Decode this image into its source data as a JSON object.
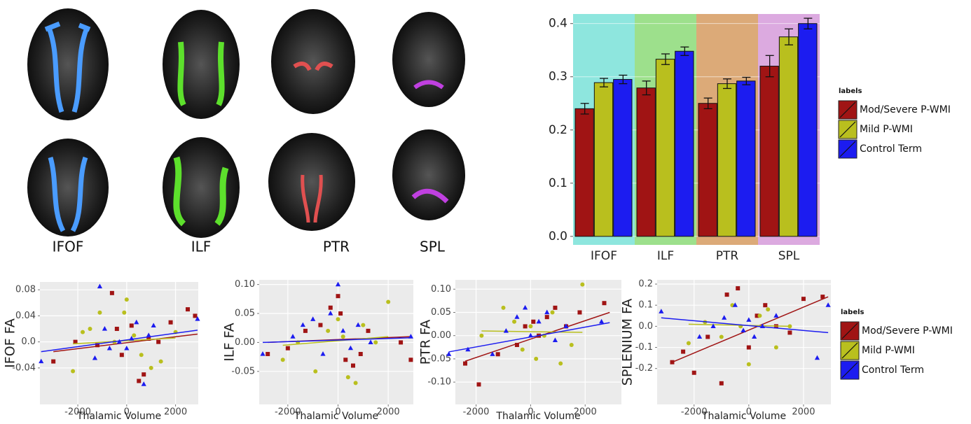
{
  "brain_panel": {
    "labels": [
      "IFOF",
      "ILF",
      "PTR",
      "SPL"
    ]
  },
  "chart_data": [
    {
      "type": "bar",
      "categories": [
        "IFOF",
        "ILF",
        "PTR",
        "SPL"
      ],
      "category_backgrounds": [
        "#8ee6de",
        "#9de08c",
        "#dcaa78",
        "#dcaae0"
      ],
      "ylim": [
        -0.016,
        0.418
      ],
      "yticks": [
        {
          "value": 0,
          "label": "0.0"
        },
        0.1,
        0.2,
        0.3,
        0.4
      ],
      "legend_title": "labels",
      "legend": "right",
      "series": [
        {
          "name": "Mod/Severe P-WMI",
          "color": "#a01414",
          "values": [
            0.24,
            0.279,
            0.25,
            0.32
          ],
          "errors": [
            0.01,
            0.013,
            0.01,
            0.02
          ]
        },
        {
          "name": "Mild P-WMI",
          "color": "#b9bf1e",
          "values": [
            0.289,
            0.333,
            0.287,
            0.375
          ],
          "errors": [
            0.008,
            0.01,
            0.009,
            0.015
          ]
        },
        {
          "name": "Control Term",
          "color": "#1c1cf0",
          "values": [
            0.295,
            0.348,
            0.292,
            0.4
          ],
          "errors": [
            0.008,
            0.008,
            0.007,
            0.01
          ]
        }
      ]
    },
    {
      "type": "scatter",
      "xlabel": "Thalamic Volume",
      "ylabel": "IFOF FA",
      "xlim": [
        -3550,
        2930
      ],
      "ylim": [
        -0.096,
        0.092
      ],
      "xticks": [
        -2000,
        0,
        2000
      ],
      "yticks": [
        {
          "value": -0.04,
          "label": "-0.04"
        },
        {
          "value": 0,
          "label": "0.0"
        },
        {
          "value": 0.04,
          "label": "0.04"
        },
        {
          "value": 0.08,
          "label": "0.08"
        }
      ],
      "grid": true,
      "series": [
        {
          "color": "#a01414",
          "marker": "square",
          "x": [
            -3000,
            -2100,
            -1200,
            -600,
            -400,
            -200,
            200,
            500,
            700,
            900,
            1300,
            1800,
            2500,
            2800
          ],
          "values": [
            -0.03,
            0.0,
            -0.005,
            0.075,
            0.02,
            -0.02,
            0.025,
            -0.06,
            -0.05,
            0.005,
            0.0,
            0.03,
            0.05,
            0.04
          ],
          "fit_x": [
            -3000,
            2900
          ],
          "fit_y": [
            -0.015,
            0.012
          ]
        },
        {
          "color": "#b9bf1e",
          "marker": "circle",
          "x": [
            -2200,
            -1800,
            -1500,
            -1100,
            -500,
            -100,
            0,
            300,
            600,
            1000,
            1400,
            2000
          ],
          "values": [
            -0.045,
            0.015,
            0.02,
            0.045,
            0.0,
            0.045,
            0.065,
            0.01,
            -0.02,
            -0.04,
            -0.03,
            0.015
          ],
          "fit_x": [
            -2200,
            2000
          ],
          "fit_y": [
            -0.003,
            0.006
          ]
        },
        {
          "color": "#1c1cf0",
          "marker": "triangle",
          "x": [
            -3500,
            -1300,
            -1100,
            -900,
            -700,
            -300,
            0,
            200,
            400,
            700,
            900,
            1100,
            2900
          ],
          "values": [
            -0.03,
            -0.025,
            0.085,
            0.02,
            -0.01,
            0.0,
            -0.01,
            0.005,
            0.03,
            -0.065,
            0.01,
            0.025,
            0.035
          ],
          "fit_x": [
            -3500,
            2900
          ],
          "fit_y": [
            -0.015,
            0.018
          ]
        }
      ]
    },
    {
      "type": "scatter",
      "xlabel": "Thalamic Volume",
      "ylabel": "ILF FA",
      "xlim": [
        -3140,
        3000
      ],
      "ylim": [
        -0.107,
        0.108
      ],
      "xticks": [
        -2000,
        0,
        2000
      ],
      "yticks": [
        {
          "value": -0.05,
          "label": "-0.05"
        },
        {
          "value": 0,
          "label": "0.00"
        },
        0.05,
        {
          "value": 0.1,
          "label": "0.10"
        }
      ],
      "grid": true,
      "series": [
        {
          "color": "#a01414",
          "marker": "square",
          "x": [
            -2800,
            -2000,
            -1300,
            -700,
            -300,
            0,
            100,
            300,
            600,
            900,
            1200,
            2500,
            2900
          ],
          "values": [
            -0.02,
            -0.01,
            0.02,
            0.03,
            0.06,
            0.08,
            0.05,
            -0.03,
            -0.04,
            -0.02,
            0.02,
            0.0,
            -0.03
          ],
          "fit_x": [
            -2800,
            2900
          ],
          "fit_y": [
            0.0,
            0.01
          ]
        },
        {
          "color": "#b9bf1e",
          "marker": "circle",
          "x": [
            -2200,
            -1600,
            -900,
            -400,
            0,
            200,
            400,
            700,
            1000,
            1500,
            2000
          ],
          "values": [
            -0.03,
            0.0,
            -0.05,
            0.02,
            0.04,
            0.01,
            -0.06,
            -0.07,
            0.03,
            0.0,
            0.07
          ],
          "fit_x": [
            -2200,
            2000
          ],
          "fit_y": [
            -0.005,
            0.01
          ]
        },
        {
          "color": "#1c1cf0",
          "marker": "triangle",
          "x": [
            -3000,
            -1800,
            -1400,
            -1000,
            -600,
            -300,
            0,
            200,
            500,
            800,
            1300,
            2900
          ],
          "values": [
            -0.02,
            0.01,
            0.03,
            0.04,
            -0.02,
            0.05,
            0.1,
            0.02,
            -0.01,
            0.03,
            0.0,
            0.01
          ],
          "fit_x": [
            -3000,
            2900
          ],
          "fit_y": [
            0.0,
            0.008
          ]
        }
      ]
    },
    {
      "type": "scatter",
      "xlabel": "Thalamic Volume",
      "ylabel": "PTR FA",
      "xlim": [
        -2760,
        3330
      ],
      "ylim": [
        -0.148,
        0.12
      ],
      "xticks": [
        -2000,
        0,
        2000
      ],
      "yticks": [
        {
          "value": -0.1,
          "label": "-0.10"
        },
        {
          "value": -0.05,
          "label": "-0.05"
        },
        {
          "value": 0,
          "label": "0.00"
        },
        0.05,
        {
          "value": 0.1,
          "label": "0.10"
        }
      ],
      "grid": true,
      "series": [
        {
          "color": "#a01414",
          "marker": "square",
          "x": [
            -2400,
            -1900,
            -1200,
            -500,
            -200,
            100,
            300,
            600,
            900,
            1300,
            1800,
            2700
          ],
          "values": [
            -0.06,
            -0.105,
            -0.04,
            -0.02,
            0.02,
            0.03,
            0.0,
            0.04,
            0.06,
            0.02,
            0.05,
            0.07
          ],
          "fit_x": [
            -2400,
            2900
          ],
          "fit_y": [
            -0.055,
            0.05
          ]
        },
        {
          "color": "#b9bf1e",
          "marker": "circle",
          "x": [
            -1800,
            -1000,
            -600,
            -300,
            0,
            200,
            500,
            800,
            1100,
            1500,
            1900
          ],
          "values": [
            0.0,
            0.06,
            0.03,
            -0.03,
            0.02,
            -0.05,
            0.0,
            0.05,
            -0.06,
            -0.02,
            0.11
          ],
          "fit_x": [
            -1800,
            1900
          ],
          "fit_y": [
            0.01,
            0.007
          ]
        },
        {
          "color": "#1c1cf0",
          "marker": "triangle",
          "x": [
            -3000,
            -2300,
            -1400,
            -900,
            -500,
            -200,
            0,
            300,
            600,
            900,
            1300,
            2600
          ],
          "values": [
            -0.04,
            -0.03,
            -0.04,
            0.01,
            0.04,
            0.06,
            0.0,
            0.03,
            0.05,
            -0.01,
            0.02,
            0.03
          ],
          "fit_x": [
            -3000,
            2900
          ],
          "fit_y": [
            -0.035,
            0.028
          ]
        }
      ]
    },
    {
      "type": "scatter",
      "xlabel": "Thalamic Volume",
      "ylabel": "SPLENIUM FA",
      "xlim": [
        -3350,
        3000
      ],
      "ylim": [
        -0.37,
        0.22
      ],
      "xticks": [
        -2000,
        0,
        2000
      ],
      "yticks": [
        -0.2,
        -0.1,
        {
          "value": 0,
          "label": "0.0"
        },
        0.1,
        0.2
      ],
      "grid": true,
      "legend_title": "labels",
      "legend": "right",
      "series": [
        {
          "name": "Mod/Severe P-WMI",
          "color": "#a01414",
          "marker": "square",
          "x": [
            -2800,
            -2400,
            -2000,
            -1500,
            -1000,
            -800,
            -400,
            0,
            300,
            600,
            1000,
            1500,
            2000,
            2700
          ],
          "values": [
            -0.17,
            -0.12,
            -0.22,
            -0.05,
            -0.27,
            0.15,
            0.18,
            -0.1,
            0.05,
            0.1,
            0.0,
            -0.03,
            0.13,
            0.14
          ],
          "fit_x": [
            -2800,
            2900
          ],
          "fit_y": [
            -0.17,
            0.14
          ]
        },
        {
          "name": "Mild P-WMI",
          "color": "#b9bf1e",
          "marker": "circle",
          "x": [
            -2200,
            -1600,
            -1000,
            -600,
            -300,
            0,
            400,
            700,
            1000,
            1500
          ],
          "values": [
            -0.08,
            0.02,
            -0.05,
            0.1,
            0.0,
            -0.18,
            0.05,
            0.08,
            -0.1,
            0.0
          ],
          "fit_x": [
            -2200,
            1500
          ],
          "fit_y": [
            0.01,
            0.0
          ]
        },
        {
          "name": "Control Term",
          "color": "#1c1cf0",
          "marker": "triangle",
          "x": [
            -3200,
            -1800,
            -1300,
            -900,
            -500,
            -200,
            0,
            200,
            500,
            1000,
            2500,
            2900
          ],
          "values": [
            0.07,
            -0.05,
            0.0,
            0.04,
            0.1,
            -0.02,
            0.03,
            -0.05,
            0.0,
            0.05,
            -0.15,
            0.1
          ],
          "fit_x": [
            -3200,
            2900
          ],
          "fit_y": [
            0.04,
            -0.03
          ]
        }
      ]
    }
  ]
}
